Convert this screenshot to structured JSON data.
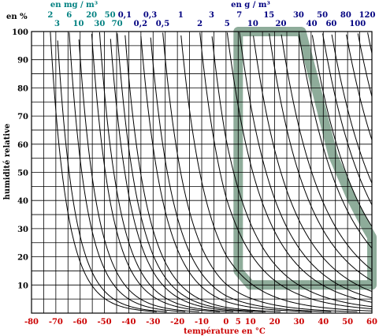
{
  "chart_data": {
    "type": "line",
    "xlabel": "température en °C",
    "ylabel": "humidité relative",
    "y_unit_label": "en %",
    "top_label_mg": "en mg / m³",
    "top_label_g": "en g / m³",
    "xlim": [
      -80,
      60
    ],
    "ylim": [
      0,
      100
    ],
    "grid": true,
    "x_ticks": [
      {
        "value": -80,
        "label": "-80"
      },
      {
        "value": -70,
        "label": "-70"
      },
      {
        "value": -60,
        "label": "-60"
      },
      {
        "value": -50,
        "label": "-50"
      },
      {
        "value": -40,
        "label": "-40"
      },
      {
        "value": -30,
        "label": "-30"
      },
      {
        "value": -20,
        "label": "-20"
      },
      {
        "value": -10,
        "label": "-10"
      },
      {
        "value": 0,
        "label": "0"
      },
      {
        "value": 5,
        "label": "5"
      },
      {
        "value": 10,
        "label": "10"
      },
      {
        "value": 20,
        "label": "20"
      },
      {
        "value": 30,
        "label": "30"
      },
      {
        "value": 40,
        "label": "40"
      },
      {
        "value": 50,
        "label": "50"
      },
      {
        "value": 60,
        "label": "60"
      }
    ],
    "y_ticks": [
      {
        "value": 10,
        "label": "10"
      },
      {
        "value": 20,
        "label": "20"
      },
      {
        "value": 30,
        "label": "30"
      },
      {
        "value": 40,
        "label": "40"
      },
      {
        "value": 50,
        "label": "50"
      },
      {
        "value": 60,
        "label": "60"
      },
      {
        "value": 70,
        "label": "70"
      },
      {
        "value": 80,
        "label": "80"
      },
      {
        "value": 90,
        "label": "90"
      },
      {
        "value": 100,
        "label": "100"
      }
    ],
    "series_mg_per_m3": [
      {
        "label": "2",
        "value_g": 0.002
      },
      {
        "label": "3",
        "value_g": 0.003
      },
      {
        "label": "6",
        "value_g": 0.006
      },
      {
        "label": "10",
        "value_g": 0.01
      },
      {
        "label": "20",
        "value_g": 0.02
      },
      {
        "label": "30",
        "value_g": 0.03
      },
      {
        "label": "50",
        "value_g": 0.05
      },
      {
        "label": "70",
        "value_g": 0.07
      }
    ],
    "series_g_per_m3": [
      {
        "label": "0,1",
        "value_g": 0.1
      },
      {
        "label": "0,2",
        "value_g": 0.2
      },
      {
        "label": "0,3",
        "value_g": 0.3
      },
      {
        "label": "0,5",
        "value_g": 0.5
      },
      {
        "label": "1",
        "value_g": 1
      },
      {
        "label": "2",
        "value_g": 2
      },
      {
        "label": "3",
        "value_g": 3
      },
      {
        "label": "5",
        "value_g": 5
      },
      {
        "label": "7",
        "value_g": 7
      },
      {
        "label": "10",
        "value_g": 10
      },
      {
        "label": "15",
        "value_g": 15
      },
      {
        "label": "20",
        "value_g": 20
      },
      {
        "label": "30",
        "value_g": 30
      },
      {
        "label": "40",
        "value_g": 40
      },
      {
        "label": "50",
        "value_g": 50
      },
      {
        "label": "60",
        "value_g": 60
      },
      {
        "label": "80",
        "value_g": 80
      },
      {
        "label": "100",
        "value_g": 100
      },
      {
        "label": "120",
        "value_g": 120
      }
    ],
    "comfort_zone_polygon": [
      {
        "t": 5,
        "rh": 100
      },
      {
        "t": 31,
        "rh": 100
      },
      {
        "t": 37,
        "rh": 80
      },
      {
        "t": 44,
        "rh": 56
      },
      {
        "t": 52,
        "rh": 40
      },
      {
        "t": 58,
        "rh": 30
      },
      {
        "t": 60,
        "rh": 27
      },
      {
        "t": 60,
        "rh": 10
      },
      {
        "t": 10,
        "rh": 10
      },
      {
        "t": 5,
        "rh": 15
      }
    ],
    "colors": {
      "zone": "#7a9e88",
      "curves": "#000000",
      "grid": "#000000",
      "x_ticks": "#cc0000",
      "mg_ticks": "#008080",
      "g_ticks": "#000080"
    }
  }
}
